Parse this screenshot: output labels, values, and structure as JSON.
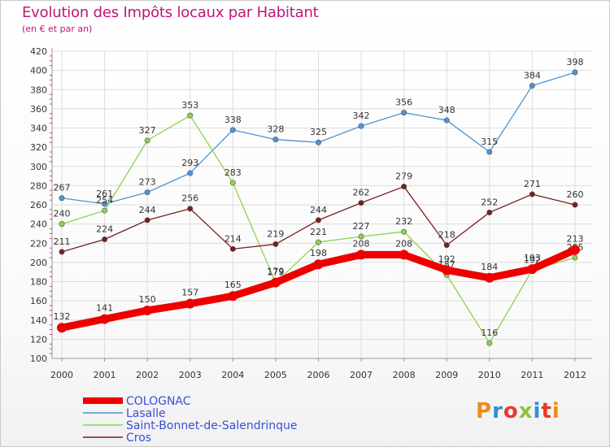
{
  "title": "Evolution des Impôts locaux par Habitant",
  "subtitle": "(en € et par an)",
  "logo": {
    "text": "Proxiti",
    "letter_colors": [
      "#f08a1c",
      "#2e8fd6",
      "#e53b2b",
      "#8bc43f",
      "#2e8fd6",
      "#e53b2b",
      "#f08a1c"
    ]
  },
  "chart_data": {
    "type": "line",
    "x": [
      "2000",
      "2001",
      "2002",
      "2003",
      "2004",
      "2005",
      "2006",
      "2007",
      "2008",
      "2009",
      "2010",
      "2011",
      "2012"
    ],
    "ylim": [
      100,
      420
    ],
    "yticks": [
      100,
      120,
      140,
      160,
      180,
      200,
      220,
      240,
      260,
      280,
      300,
      320,
      340,
      360,
      380,
      400,
      420
    ],
    "grid": true,
    "legend_position": "bottom-left",
    "series": [
      {
        "name": "Lasalle",
        "color": "#4f94d4",
        "values": [
          267,
          261,
          273,
          293,
          338,
          328,
          325,
          342,
          356,
          348,
          315,
          384,
          398
        ]
      },
      {
        "name": "Saint-Bonnet-de-Salendrinque",
        "color": "#8ed24f",
        "values": [
          240,
          254,
          327,
          353,
          283,
          179,
          221,
          227,
          232,
          187,
          116,
          192,
          205
        ]
      },
      {
        "name": "Cros",
        "color": "#7a1e1e",
        "values": [
          211,
          224,
          244,
          256,
          214,
          219,
          244,
          262,
          279,
          218,
          252,
          271,
          260
        ]
      },
      {
        "name": "COLOGNAC",
        "color": "#ee0000",
        "values": [
          132,
          141,
          150,
          157,
          165,
          179,
          198,
          208,
          208,
          192,
          184,
          193,
          213
        ]
      }
    ],
    "legend_order": [
      "COLOGNAC",
      "Lasalle",
      "Saint-Bonnet-de-Salendrinque",
      "Cros"
    ]
  }
}
